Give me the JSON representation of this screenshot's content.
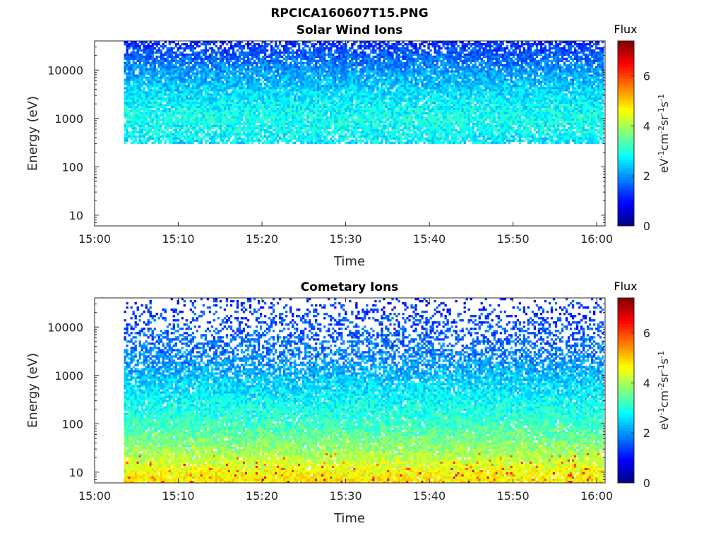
{
  "figure": {
    "main_title": "RPCICA160607T15.PNG"
  },
  "chart_data": [
    {
      "type": "heatmap",
      "title": "Solar Wind Ions",
      "xlabel": "Time",
      "ylabel": "Energy (eV)",
      "x_ticks": [
        "15:00",
        "15:10",
        "15:20",
        "15:30",
        "15:40",
        "15:50",
        "16:00"
      ],
      "x_range": [
        "15:00",
        "16:01"
      ],
      "data_start": "15:03.5",
      "y_scale": "log",
      "y_ticks": [
        "10",
        "100",
        "1000",
        "10000"
      ],
      "y_range": [
        6,
        40000
      ],
      "colorbar": {
        "label": "Flux",
        "unit_label": "eV-1cm-2sr-1s-1",
        "ticks": [
          "0",
          "2",
          "4",
          "6"
        ],
        "range": [
          0,
          7.4
        ],
        "colormap": "jet"
      },
      "band_energy_eV": [
        300,
        40000
      ],
      "flux_profile": [
        {
          "energy": 300,
          "flux": 2.6,
          "fill": 0.75
        },
        {
          "energy": 500,
          "flux": 2.8,
          "fill": 0.85
        },
        {
          "energy": 1000,
          "flux": 2.9,
          "fill": 0.95
        },
        {
          "energy": 3000,
          "flux": 2.6,
          "fill": 0.95
        },
        {
          "energy": 10000,
          "flux": 2.0,
          "fill": 0.9
        },
        {
          "energy": 20000,
          "flux": 1.6,
          "fill": 0.85
        },
        {
          "energy": 40000,
          "flux": 1.2,
          "fill": 0.6
        }
      ]
    },
    {
      "type": "heatmap",
      "title": "Cometary Ions",
      "xlabel": "Time",
      "ylabel": "Energy (eV)",
      "x_ticks": [
        "15:00",
        "15:10",
        "15:20",
        "15:30",
        "15:40",
        "15:50",
        "16:00"
      ],
      "x_range": [
        "15:00",
        "16:01"
      ],
      "data_start": "15:03.5",
      "y_scale": "log",
      "y_ticks": [
        "10",
        "100",
        "1000",
        "10000"
      ],
      "y_range": [
        6,
        40000
      ],
      "colorbar": {
        "label": "Flux",
        "unit_label": "eV-1cm-2sr-1s-1",
        "ticks": [
          "0",
          "2",
          "4",
          "6"
        ],
        "range": [
          0,
          7.4
        ],
        "colormap": "jet"
      },
      "band_energy_eV": [
        6,
        40000
      ],
      "flux_profile": [
        {
          "energy": 6,
          "flux": 4.8,
          "fill": 0.97
        },
        {
          "energy": 10,
          "flux": 4.6,
          "fill": 0.97
        },
        {
          "energy": 20,
          "flux": 4.1,
          "fill": 0.95
        },
        {
          "energy": 50,
          "flux": 3.6,
          "fill": 0.95
        },
        {
          "energy": 100,
          "flux": 3.2,
          "fill": 0.95
        },
        {
          "energy": 300,
          "flux": 2.8,
          "fill": 0.95
        },
        {
          "energy": 1000,
          "flux": 2.3,
          "fill": 0.85
        },
        {
          "energy": 3000,
          "flux": 1.8,
          "fill": 0.55
        },
        {
          "energy": 10000,
          "flux": 1.5,
          "fill": 0.35
        },
        {
          "energy": 40000,
          "flux": 1.2,
          "fill": 0.12
        }
      ]
    }
  ]
}
